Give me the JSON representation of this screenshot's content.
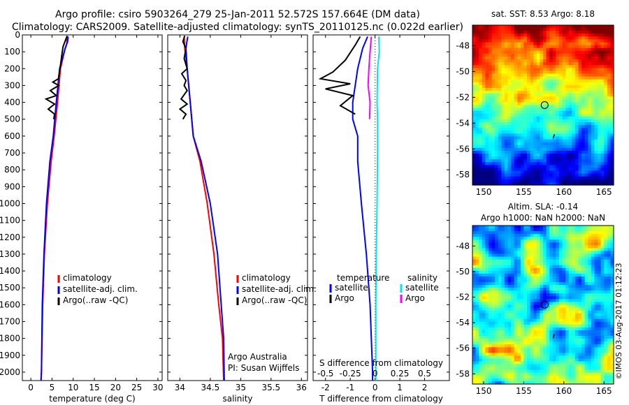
{
  "header": {
    "title": "Argo profile: csiro 5903264_279 25-Jan-2011 52.572S 157.664E (DM data)",
    "subtitle": "Climatology: CARS2009. Satellite-adjusted climatology: synTS_20110125.nc (0.022d earlier)"
  },
  "colors": {
    "climatology": "#ff0000",
    "satellite": "#0000ff",
    "argo": "#000000",
    "satellite_salinity": "#00e5ee",
    "argo_salinity": "#ff00ff"
  },
  "chart_data": [
    {
      "type": "line",
      "id": "temperature",
      "xlabel": "temperature (deg C)",
      "xlim": [
        -2,
        31
      ],
      "xticks": [
        0,
        5,
        10,
        15,
        20,
        25,
        30
      ],
      "ylim": [
        0,
        2050
      ],
      "yticks": [
        0,
        100,
        200,
        300,
        400,
        500,
        600,
        700,
        800,
        900,
        1000,
        1100,
        1200,
        1300,
        1400,
        1500,
        1600,
        1700,
        1800,
        1900,
        2000
      ],
      "legend": [
        "climatology",
        "satellite-adj. clim.",
        "Argo(..raw -QC)"
      ],
      "series": [
        {
          "name": "climatology",
          "color": "#ff0000",
          "points": [
            [
              8.5,
              10
            ],
            [
              8.5,
              50
            ],
            [
              8.0,
              90
            ],
            [
              7.0,
              200
            ],
            [
              6.3,
              400
            ],
            [
              5.5,
              600
            ],
            [
              4.8,
              750
            ],
            [
              3.9,
              1000
            ],
            [
              3.2,
              1300
            ],
            [
              2.8,
              1600
            ],
            [
              2.5,
              2000
            ],
            [
              2.4,
              2050
            ]
          ]
        },
        {
          "name": "satellite-adj. clim.",
          "color": "#0000ff",
          "points": [
            [
              8.8,
              10
            ],
            [
              8.7,
              40
            ],
            [
              8.1,
              80
            ],
            [
              6.8,
              200
            ],
            [
              6.0,
              400
            ],
            [
              5.3,
              600
            ],
            [
              4.5,
              750
            ],
            [
              3.7,
              1000
            ],
            [
              3.1,
              1300
            ],
            [
              2.7,
              1600
            ],
            [
              2.5,
              2000
            ],
            [
              2.4,
              2050
            ]
          ]
        },
        {
          "name": "Argo(..raw -QC)",
          "color": "#000000",
          "points": [
            [
              8.6,
              5
            ],
            [
              8.2,
              30
            ],
            [
              7.6,
              70
            ],
            [
              7.3,
              120
            ],
            [
              6.9,
              200
            ],
            [
              6.5,
              260
            ],
            [
              5.2,
              280
            ],
            [
              6.6,
              300
            ],
            [
              4.6,
              330
            ],
            [
              6.0,
              360
            ],
            [
              3.6,
              380
            ],
            [
              5.6,
              410
            ],
            [
              4.1,
              440
            ],
            [
              5.6,
              470
            ],
            [
              5.4,
              500
            ]
          ]
        }
      ]
    },
    {
      "type": "line",
      "id": "salinity",
      "xlabel": "salinity",
      "xlim": [
        33.8,
        36.1
      ],
      "xticks": [
        34,
        34.5,
        35,
        35.5,
        36
      ],
      "xticklabels": [
        "34",
        "34.5",
        "35",
        "35.5",
        "36"
      ],
      "ylim": [
        0,
        2050
      ],
      "legend": [
        "climatology",
        "satellite-adj. clim.",
        "Argo(..raw -QC)"
      ],
      "annotations": [
        "Argo Australia",
        "PI: Susan Wijffels"
      ],
      "series": [
        {
          "name": "climatology",
          "color": "#ff0000",
          "points": [
            [
              34.07,
              10
            ],
            [
              34.08,
              80
            ],
            [
              34.12,
              200
            ],
            [
              34.17,
              400
            ],
            [
              34.22,
              600
            ],
            [
              34.33,
              750
            ],
            [
              34.45,
              1000
            ],
            [
              34.56,
              1300
            ],
            [
              34.64,
              1600
            ],
            [
              34.7,
              1800
            ],
            [
              34.72,
              2050
            ]
          ]
        },
        {
          "name": "satellite-adj. clim.",
          "color": "#0000ff",
          "points": [
            [
              34.13,
              10
            ],
            [
              34.12,
              30
            ],
            [
              34.1,
              80
            ],
            [
              34.12,
              200
            ],
            [
              34.17,
              400
            ],
            [
              34.22,
              600
            ],
            [
              34.35,
              750
            ],
            [
              34.5,
              1000
            ],
            [
              34.62,
              1300
            ],
            [
              34.68,
              1600
            ],
            [
              34.72,
              1800
            ],
            [
              34.73,
              2050
            ]
          ]
        },
        {
          "name": "Argo(..raw -QC)",
          "color": "#000000",
          "points": [
            [
              34.08,
              5
            ],
            [
              34.05,
              40
            ],
            [
              34.1,
              80
            ],
            [
              34.07,
              140
            ],
            [
              34.12,
              200
            ],
            [
              34.03,
              230
            ],
            [
              34.1,
              270
            ],
            [
              34.07,
              300
            ],
            [
              34.12,
              330
            ],
            [
              34.02,
              380
            ],
            [
              34.12,
              410
            ],
            [
              34.0,
              440
            ],
            [
              34.1,
              470
            ],
            [
              34.05,
              500
            ]
          ]
        }
      ]
    },
    {
      "type": "line",
      "id": "difference",
      "xlabel": "T difference from climatology",
      "xlabel_top": "S difference from climatology",
      "xlim": [
        -2.5,
        3
      ],
      "xticks": [
        -2,
        -1,
        0,
        1,
        2
      ],
      "xticks_top": [
        "-0.5",
        "-0.25",
        "0",
        "0.25",
        "0.5"
      ],
      "ylim": [
        0,
        2050
      ],
      "legend": {
        "temperature": [
          "satellite",
          "Argo"
        ],
        "salinity": [
          "satellite",
          "Argo"
        ]
      },
      "legend_headers": [
        "temperature",
        "salinity"
      ],
      "series": [
        {
          "name": "satellite",
          "group": "temperature",
          "color": "#0000ff",
          "points": [
            [
              -0.3,
              10
            ],
            [
              -0.5,
              80
            ],
            [
              -0.7,
              200
            ],
            [
              -0.9,
              400
            ],
            [
              -0.9,
              500
            ],
            [
              -0.7,
              600
            ],
            [
              -0.7,
              750
            ],
            [
              -0.55,
              1000
            ],
            [
              -0.35,
              1300
            ],
            [
              -0.2,
              1600
            ],
            [
              -0.1,
              2000
            ],
            [
              -0.1,
              2050
            ]
          ]
        },
        {
          "name": "Argo",
          "group": "temperature",
          "color": "#000000",
          "points": [
            [
              -0.6,
              10
            ],
            [
              -0.8,
              60
            ],
            [
              -1.2,
              150
            ],
            [
              -1.7,
              220
            ],
            [
              -2.2,
              260
            ],
            [
              -1.0,
              290
            ],
            [
              -2.0,
              320
            ],
            [
              -0.9,
              360
            ],
            [
              -1.4,
              420
            ],
            [
              -0.8,
              470
            ]
          ]
        },
        {
          "name": "satellite",
          "group": "salinity",
          "color": "#00e5ee",
          "points": [
            [
              0.15,
              10
            ],
            [
              0.17,
              100
            ],
            [
              0.1,
              200
            ],
            [
              0.08,
              400
            ],
            [
              0.1,
              500
            ],
            [
              0.1,
              700
            ],
            [
              0.08,
              1000
            ],
            [
              0.05,
              1300
            ],
            [
              0.03,
              1600
            ],
            [
              0.03,
              2000
            ],
            [
              0.03,
              2050
            ]
          ]
        },
        {
          "name": "Argo",
          "group": "salinity",
          "color": "#ff00ff",
          "points": [
            [
              -0.15,
              10
            ],
            [
              -0.2,
              100
            ],
            [
              -0.25,
              200
            ],
            [
              -0.28,
              300
            ],
            [
              -0.2,
              400
            ],
            [
              -0.22,
              500
            ]
          ]
        }
      ]
    },
    {
      "type": "heatmap",
      "id": "sst-map",
      "title": "sat. SST: 8.53 Argo: 8.18",
      "xlim": [
        148.6,
        166.2
      ],
      "ylim": [
        -58.8,
        -46.4
      ],
      "xticks": [
        150,
        155,
        160,
        165
      ],
      "yticks": [
        -48,
        -50,
        -52,
        -54,
        -56,
        -58
      ],
      "marker": {
        "lon": 157.6,
        "lat": -52.6
      }
    },
    {
      "type": "heatmap",
      "id": "sla-map",
      "title": "Altim. SLA: -0.14",
      "subtitle": "Argo h1000: NaN h2000: NaN",
      "xlim": [
        148.6,
        166.2
      ],
      "ylim": [
        -58.8,
        -46.4
      ],
      "xticks": [
        150,
        155,
        160,
        165
      ],
      "yticks": [
        -48,
        -50,
        -52,
        -54,
        -56,
        -58
      ],
      "marker": {
        "lon": 157.6,
        "lat": -52.6
      }
    }
  ],
  "footer": {
    "stamp": "©IMOS 03-Aug-2017 01:12:23"
  }
}
